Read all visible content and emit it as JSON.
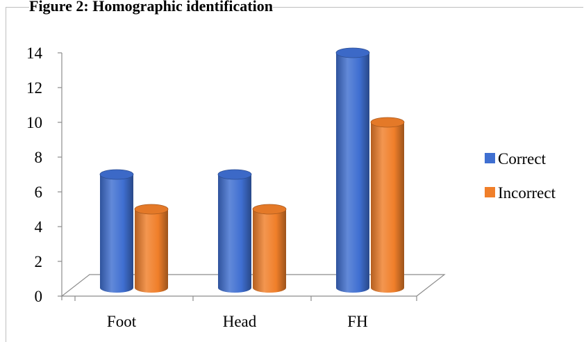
{
  "figure": {
    "caption": "Figure 2: Homographic identification"
  },
  "colors": {
    "correct": "#3f6fd1",
    "incorrect": "#f07f2a"
  },
  "chart_data": {
    "type": "bar",
    "style": "3d-cylinder",
    "categories": [
      "Foot",
      "Head",
      "FH"
    ],
    "series": [
      {
        "name": "Correct",
        "values": [
          7,
          7,
          14
        ],
        "color": "#3f6fd1"
      },
      {
        "name": "Incorrect",
        "values": [
          5,
          5,
          10
        ],
        "color": "#f07f2a"
      }
    ],
    "y_ticks": [
      "0",
      "2",
      "4",
      "6",
      "8",
      "10",
      "12",
      "14"
    ],
    "ylim": [
      0,
      14
    ],
    "grid": false,
    "legend_position": "right",
    "title": "",
    "xlabel": "",
    "ylabel": ""
  }
}
